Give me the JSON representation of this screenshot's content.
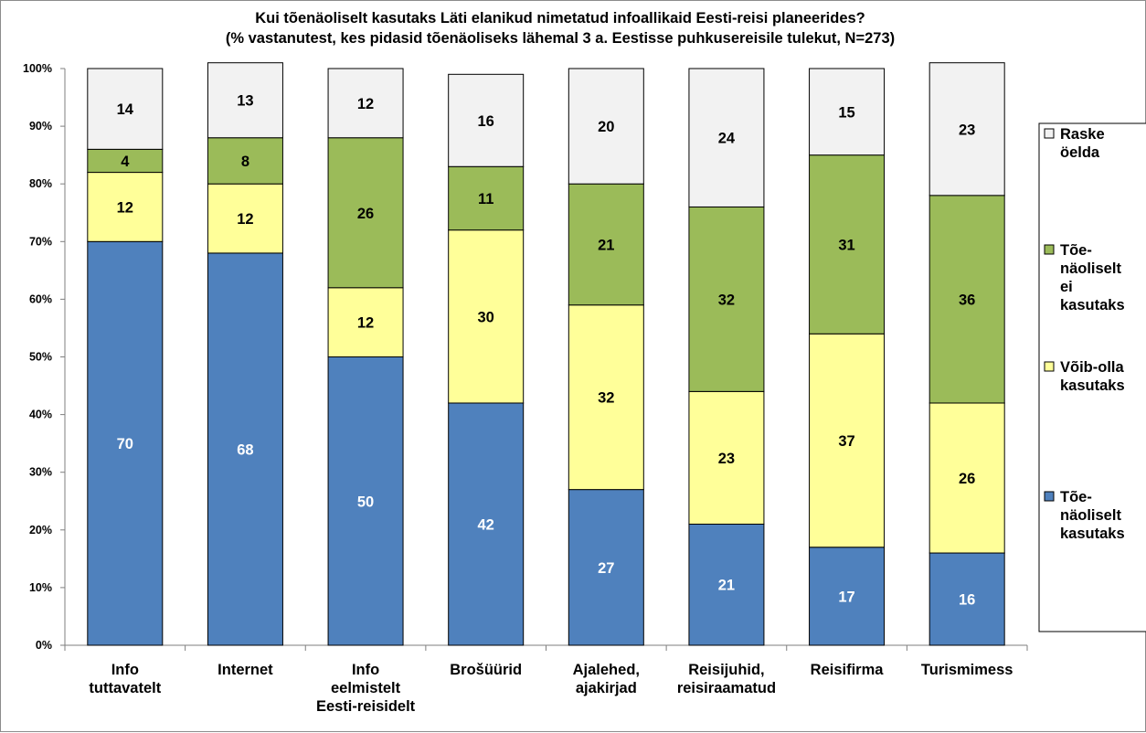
{
  "chart_data": {
    "type": "bar",
    "stacked": true,
    "title": "Kui tõenäoliselt kasutaks Läti elanikud nimetatud infoallikaid Eesti-reisi planeerides?",
    "subtitle": "(% vastanutest, kes pidasid tõenäoliseks lähemal 3 a. Eestisse puhkusereisile tulekut, N=273)",
    "categories": [
      [
        "Info",
        "tuttavatelt"
      ],
      [
        "Internet"
      ],
      [
        "Info",
        "eelmistelt",
        "Eesti-reisidelt"
      ],
      [
        "Brošüürid"
      ],
      [
        "Ajalehed,",
        "ajakirjad"
      ],
      [
        "Reisijuhid,",
        "reisiraamatud"
      ],
      [
        "Reisifirma"
      ],
      [
        "Turismimess"
      ]
    ],
    "series": [
      {
        "name": "Tõenäoliselt kasutaks",
        "legend_lines": [
          "Tõe-",
          "näoliselt",
          "kasutaks"
        ],
        "color": "#4f81bd",
        "label_color": "#ffffff",
        "values": [
          70,
          68,
          50,
          42,
          27,
          21,
          17,
          16
        ]
      },
      {
        "name": "Võib-olla kasutaks",
        "legend_lines": [
          "Võib-olla",
          "kasutaks"
        ],
        "color": "#ffff99",
        "label_color": "#000000",
        "values": [
          12,
          12,
          12,
          30,
          32,
          23,
          37,
          26
        ]
      },
      {
        "name": "Tõenäoliselt ei kasutaks",
        "legend_lines": [
          "Tõe-",
          "näoliselt",
          "ei",
          "kasutaks"
        ],
        "color": "#9bbb59",
        "label_color": "#000000",
        "values": [
          4,
          8,
          26,
          11,
          21,
          32,
          31,
          36
        ]
      },
      {
        "name": "Raske öelda",
        "legend_lines": [
          "Raske",
          "öelda"
        ],
        "color": "#f2f2f2",
        "label_color": "#000000",
        "values": [
          14,
          13,
          12,
          16,
          20,
          24,
          15,
          23
        ]
      }
    ],
    "ylim": [
      0,
      100
    ],
    "yticks": [
      "0%",
      "10%",
      "20%",
      "30%",
      "40%",
      "50%",
      "60%",
      "70%",
      "80%",
      "90%",
      "100%"
    ],
    "grid": false,
    "legend_position": "right"
  }
}
